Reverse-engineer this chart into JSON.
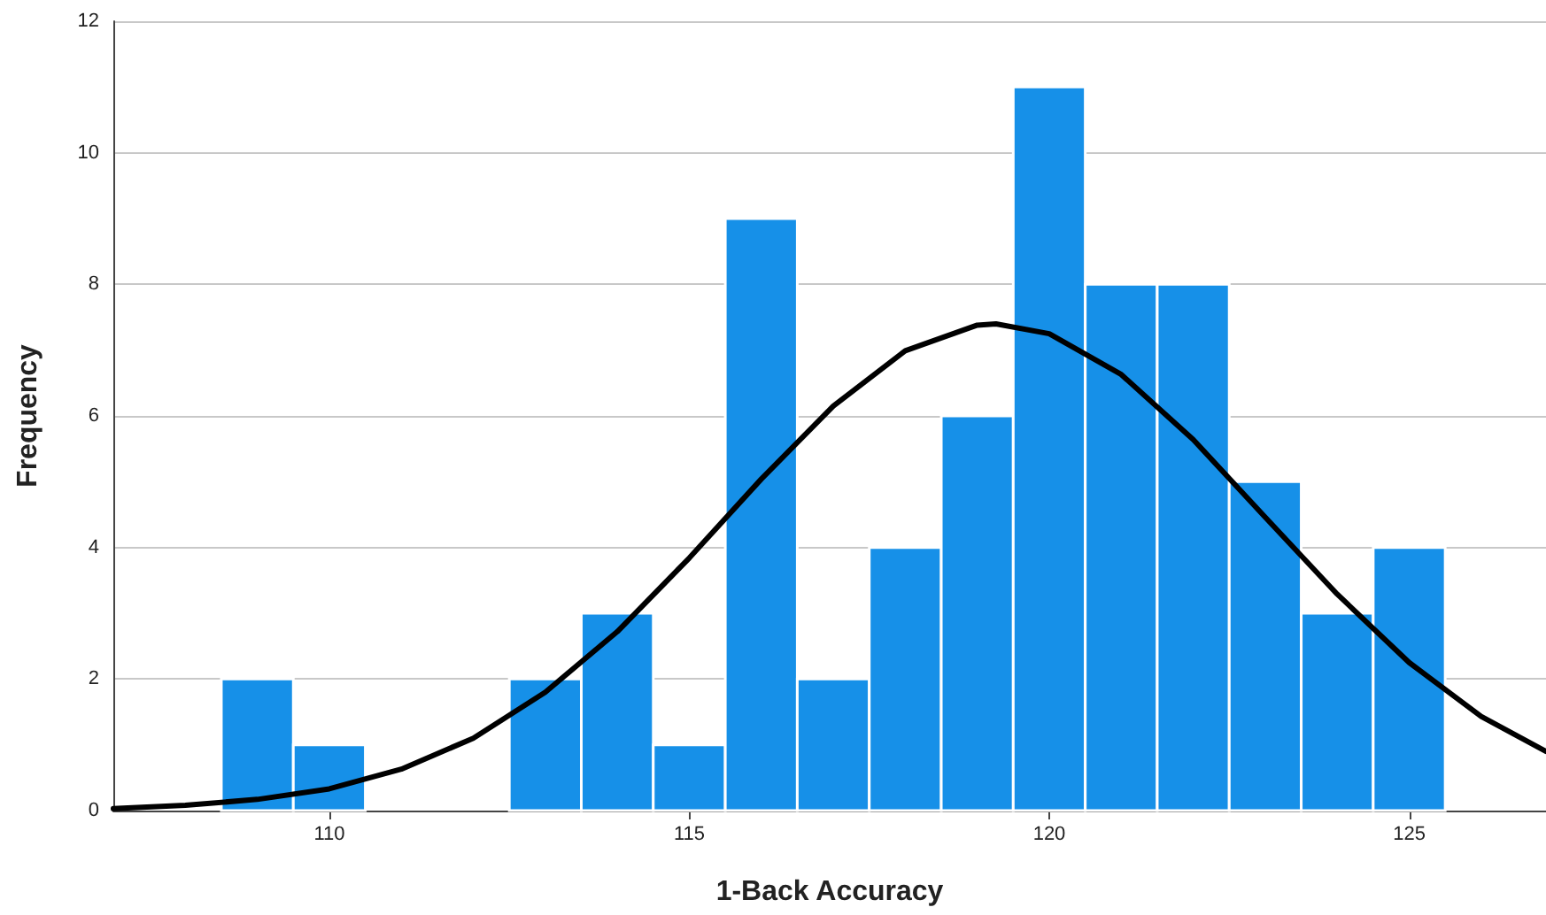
{
  "chart_data": {
    "type": "histogram",
    "xlabel": "1-Back Accuracy",
    "ylabel": "Frequency",
    "bins": [
      108.5,
      109.5,
      110.5,
      111.5,
      112.5,
      113.5,
      114.5,
      115.5,
      116.5,
      117.5,
      118.5,
      119.5,
      120.5,
      121.5,
      122.5,
      123.5,
      124.5,
      125.5
    ],
    "values": [
      2,
      1,
      0,
      0,
      2,
      3,
      1,
      9,
      2,
      4,
      6,
      11,
      8,
      8,
      5,
      3,
      4
    ],
    "color": "#1690e8",
    "series": [
      {
        "type": "line",
        "color": "#000000",
        "x": [
          107,
          108,
          109,
          110,
          111,
          112,
          113,
          114,
          115,
          116,
          117,
          118,
          119,
          119.26,
          120,
          121,
          122,
          123,
          124,
          125,
          126,
          126.9
        ],
        "values": [
          0.03,
          0.08,
          0.17,
          0.33,
          0.63,
          1.1,
          1.8,
          2.72,
          3.84,
          5.04,
          6.15,
          6.99,
          7.38,
          7.4,
          7.25,
          6.63,
          5.64,
          4.46,
          3.29,
          2.25,
          1.43,
          0.9
        ]
      }
    ],
    "marker": "none",
    "line_style": "solid",
    "xlim": [
      107,
      126.9
    ],
    "xticks": [
      110,
      115,
      120,
      125
    ],
    "ylim": [
      0,
      12
    ],
    "yticks": [
      0,
      2,
      4,
      6,
      8,
      10,
      12
    ],
    "grid": "y"
  }
}
